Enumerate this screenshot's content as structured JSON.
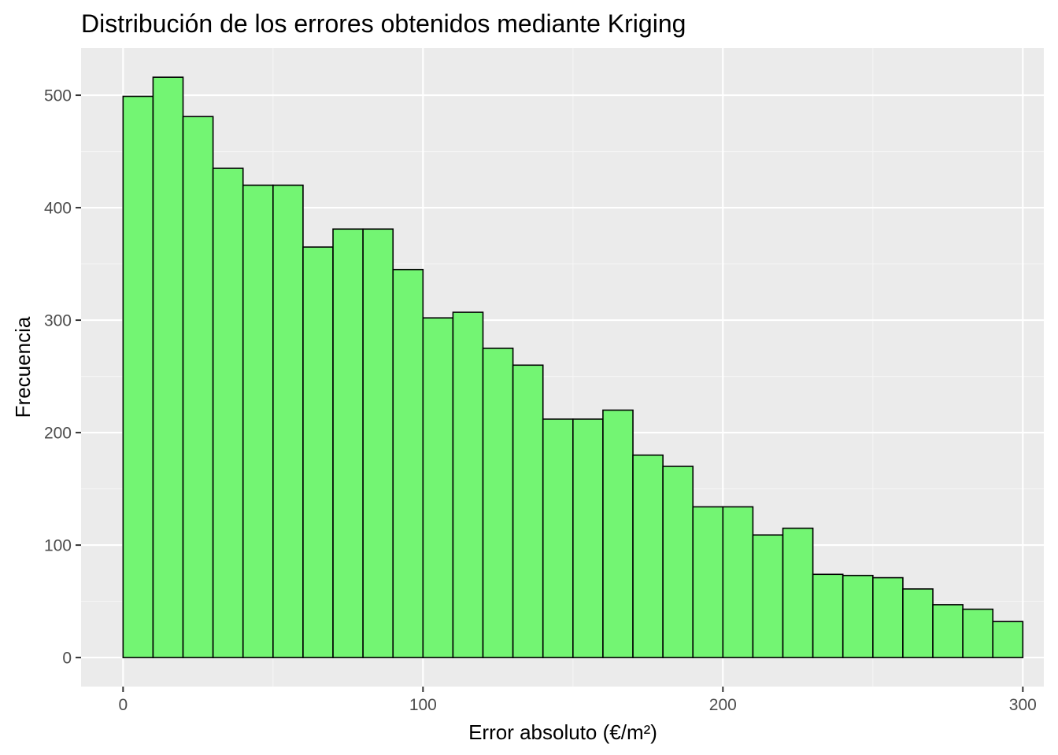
{
  "chart_data": {
    "type": "bar",
    "title": "Distribución de los errores obtenidos mediante Kriging",
    "xlabel": "Error absoluto (€/m²)",
    "ylabel": "Frecuencia",
    "bin_width": 10,
    "x": [
      5,
      15,
      25,
      35,
      45,
      55,
      65,
      75,
      85,
      95,
      105,
      115,
      125,
      135,
      145,
      155,
      165,
      175,
      185,
      195,
      205,
      215,
      225,
      235,
      245,
      255,
      265,
      275,
      285,
      295
    ],
    "values": [
      499,
      516,
      481,
      435,
      420,
      420,
      365,
      381,
      381,
      345,
      302,
      307,
      275,
      260,
      212,
      212,
      220,
      180,
      170,
      134,
      134,
      109,
      115,
      74,
      73,
      71,
      61,
      47,
      43,
      32
    ],
    "xlim": [
      -14,
      307
    ],
    "ylim": [
      -25.8,
      542
    ],
    "x_ticks": [
      0,
      100,
      200,
      300
    ],
    "x_tick_labels": [
      "0",
      "100",
      "200",
      "300"
    ],
    "y_ticks": [
      0,
      100,
      200,
      300,
      400,
      500
    ],
    "y_tick_labels": [
      "0",
      "100",
      "200",
      "300",
      "400",
      "500"
    ],
    "grid": true,
    "legend": "none",
    "colors": {
      "bar_fill": "#73f573",
      "bar_stroke": "#000000",
      "panel_background": "#ebebeb",
      "grid_major": "#ffffff",
      "grid_minor": "#f5f5f5",
      "tick_text": "#4d4d4d",
      "tick_mark": "#333333"
    }
  }
}
